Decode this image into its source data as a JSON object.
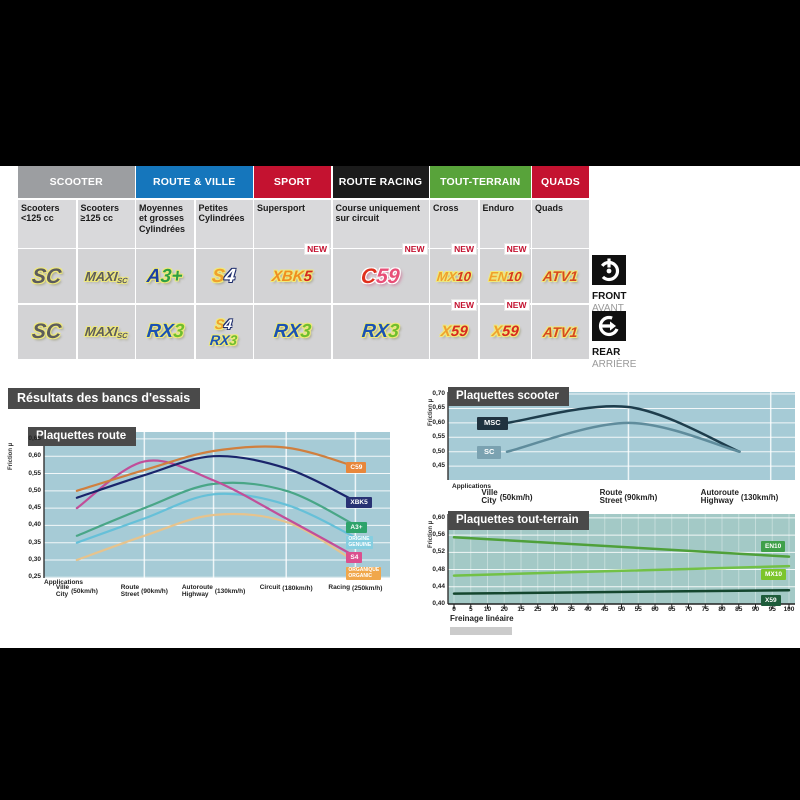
{
  "page": {
    "background": "#000000",
    "content_background": "#FFFFFF"
  },
  "results_title": "Résultats des bancs d'essais",
  "table": {
    "headers": [
      {
        "label": "SCOOTER",
        "color": "#9C9EA1",
        "span": 2
      },
      {
        "label": "ROUTE & VILLE",
        "color": "#1576BC",
        "span": 2
      },
      {
        "label": "SPORT",
        "color": "#C41230",
        "span": 1
      },
      {
        "label": "ROUTE RACING",
        "color": "#1B1B1B",
        "span": 1
      },
      {
        "label": "TOUT-TERRAIN",
        "color": "#58A33A",
        "span": 2
      },
      {
        "label": "QUADS",
        "color": "#C41230",
        "span": 1
      }
    ],
    "subheaders": [
      "Scooters <125 cc",
      "Scooters ≥125 cc",
      "Moyennes et grosses Cylindrées",
      "Petites Cylindrées",
      "Supersport",
      "Course uniquement sur circuit",
      "Cross",
      "Enduro",
      "Quads"
    ],
    "new_label": "NEW",
    "rows": [
      {
        "side": "front",
        "cells": [
          {
            "logos": [
              {
                "size": 21,
                "parts": [
                  {
                    "t": "SC",
                    "c": "#5C5C5C",
                    "fx": "glow"
                  }
                ]
              }
            ]
          },
          {
            "logos": [
              {
                "size": 13,
                "parts": [
                  {
                    "t": "MAXI",
                    "c": "#5C5C5C",
                    "fx": "glow"
                  },
                  {
                    "t": "SC",
                    "c": "#5C5C5C",
                    "fx": "glow",
                    "sub": true
                  }
                ]
              }
            ]
          },
          {
            "logos": [
              {
                "size": 19,
                "parts": [
                  {
                    "t": "A",
                    "c": "#1B3FA3",
                    "fx": "glow"
                  },
                  {
                    "t": "3+",
                    "c": "#2FA043",
                    "fx": "glow"
                  }
                ]
              }
            ]
          },
          {
            "logos": [
              {
                "size": 19,
                "parts": [
                  {
                    "t": "S",
                    "c": "#EFA12C",
                    "fx": "glow"
                  },
                  {
                    "t": "4",
                    "c": "#FFFFFF",
                    "fx": "dark"
                  }
                ]
              }
            ]
          },
          {
            "logos": [
              {
                "size": 15,
                "parts": [
                  {
                    "t": "XBK",
                    "c": "#EF8F1F",
                    "fx": "glow"
                  },
                  {
                    "t": "5",
                    "c": "#D42A1E",
                    "fx": "glow"
                  }
                ]
              }
            ],
            "new": true
          },
          {
            "logos": [
              {
                "size": 21,
                "parts": [
                  {
                    "t": "C",
                    "c": "#E0301E",
                    "fx": "pink"
                  },
                  {
                    "t": "59",
                    "c": "#E84F78",
                    "fx": "pink"
                  }
                ]
              }
            ],
            "new": true
          },
          {
            "logos": [
              {
                "size": 13,
                "parts": [
                  {
                    "t": "MX",
                    "c": "#F0A02C",
                    "fx": "glow"
                  },
                  {
                    "t": "10",
                    "c": "#D8381E",
                    "fx": "glow"
                  }
                ]
              }
            ],
            "new": true
          },
          {
            "logos": [
              {
                "size": 13,
                "parts": [
                  {
                    "t": "EN",
                    "c": "#F0A02C",
                    "fx": "glow"
                  },
                  {
                    "t": "10",
                    "c": "#D8381E",
                    "fx": "glow"
                  }
                ]
              }
            ],
            "new": true
          },
          {
            "logos": [
              {
                "size": 14,
                "parts": [
                  {
                    "t": "ATV1",
                    "c": "#D8481E",
                    "fx": "glow"
                  }
                ]
              }
            ]
          }
        ]
      },
      {
        "side": "rear",
        "cells": [
          {
            "logos": [
              {
                "size": 21,
                "parts": [
                  {
                    "t": "SC",
                    "c": "#5C5C5C",
                    "fx": "glow"
                  }
                ]
              }
            ]
          },
          {
            "logos": [
              {
                "size": 13,
                "parts": [
                  {
                    "t": "MAXI",
                    "c": "#5C5C5C",
                    "fx": "glow"
                  },
                  {
                    "t": "SC",
                    "c": "#5C5C5C",
                    "fx": "glow",
                    "sub": true
                  }
                ]
              }
            ]
          },
          {
            "logos": [
              {
                "size": 19,
                "parts": [
                  {
                    "t": "RX",
                    "c": "#1B52B4",
                    "fx": "glow"
                  },
                  {
                    "t": "3",
                    "c": "#6FBE2E",
                    "fx": "glow"
                  }
                ]
              }
            ]
          },
          {
            "logos": [
              {
                "size": 14,
                "parts": [
                  {
                    "t": "S",
                    "c": "#EFA12C",
                    "fx": "glow"
                  },
                  {
                    "t": "4",
                    "c": "#FFFFFF",
                    "fx": "dark"
                  }
                ]
              },
              {
                "size": 14,
                "parts": [
                  {
                    "t": "RX",
                    "c": "#1B52B4",
                    "fx": "glow"
                  },
                  {
                    "t": "3",
                    "c": "#6FBE2E",
                    "fx": "glow"
                  }
                ]
              }
            ]
          },
          {
            "logos": [
              {
                "size": 19,
                "parts": [
                  {
                    "t": "RX",
                    "c": "#1B52B4",
                    "fx": "glow"
                  },
                  {
                    "t": "3",
                    "c": "#6FBE2E",
                    "fx": "glow"
                  }
                ]
              }
            ]
          },
          {
            "logos": [
              {
                "size": 19,
                "parts": [
                  {
                    "t": "RX",
                    "c": "#1B52B4",
                    "fx": "glow"
                  },
                  {
                    "t": "3",
                    "c": "#6FBE2E",
                    "fx": "glow"
                  }
                ]
              }
            ]
          },
          {
            "logos": [
              {
                "size": 15,
                "parts": [
                  {
                    "t": "X",
                    "c": "#F0A02C",
                    "fx": "glow"
                  },
                  {
                    "t": "59",
                    "c": "#D8281E",
                    "fx": "glow"
                  }
                ]
              }
            ],
            "new": true
          },
          {
            "logos": [
              {
                "size": 15,
                "parts": [
                  {
                    "t": "X",
                    "c": "#F0A02C",
                    "fx": "glow"
                  },
                  {
                    "t": "59",
                    "c": "#D8281E",
                    "fx": "glow"
                  }
                ]
              }
            ],
            "new": true
          },
          {
            "logos": [
              {
                "size": 14,
                "parts": [
                  {
                    "t": "ATV1",
                    "c": "#D8481E",
                    "fx": "glow"
                  }
                ]
              }
            ]
          }
        ]
      }
    ],
    "side_labels": {
      "front": {
        "label": "FRONT",
        "sub": "AVANT"
      },
      "rear": {
        "label": "REAR",
        "sub": "ARRIÈRE"
      }
    }
  },
  "chart_data": [
    {
      "type": "line",
      "title": "Plaquettes route",
      "ylabel": "Friction µ",
      "xlabel_caption": "Applications",
      "ylim": [
        0.25,
        0.65
      ],
      "yticks": [
        0.65,
        0.6,
        0.55,
        0.5,
        0.45,
        0.4,
        0.35,
        0.3,
        0.25
      ],
      "grid": true,
      "legend_position": "right-of-lines",
      "categories": [
        {
          "line1": "Ville",
          "line2": "City",
          "speed": "(50km/h)"
        },
        {
          "line1": "Route",
          "line2": "Street",
          "speed": "(90km/h)"
        },
        {
          "line1": "Autoroute",
          "line2": "Highway",
          "speed": "(130km/h)"
        },
        {
          "line1": "Circuit",
          "speed": "(180km/h)"
        },
        {
          "line1": "Racing",
          "speed": "(250km/h)"
        }
      ],
      "series": [
        {
          "name": "ORGANIQUE|ORGANIC",
          "color": "#E6C38D",
          "label_bg": "#F0A74B",
          "values": [
            0.3,
            0.37,
            0.43,
            0.41,
            0.295
          ],
          "label_value": 0.262
        },
        {
          "name": "ORIGINE|GENUINE",
          "color": "#66C0D8",
          "label_bg": "#85CEE0",
          "values": [
            0.35,
            0.42,
            0.49,
            0.46,
            0.365
          ],
          "label_value": 0.352
        },
        {
          "name": "A3+",
          "color": "#49A687",
          "label_bg": "#2EA36B",
          "values": [
            0.37,
            0.45,
            0.52,
            0.5,
            0.4
          ],
          "label_value": 0.392
        },
        {
          "name": "S4",
          "color": "#C14E99",
          "label_bg": "#DB4F8E",
          "values": [
            0.45,
            0.585,
            0.53,
            0.42,
            0.31
          ],
          "label_value": 0.306
        },
        {
          "name": "XBK5",
          "color": "#1A246B",
          "label_bg": "#283173",
          "values": [
            0.48,
            0.545,
            0.6,
            0.565,
            0.47
          ],
          "label_value": 0.465
        },
        {
          "name": "C59",
          "color": "#D07F3E",
          "label_bg": "#E8873B",
          "values": [
            0.5,
            0.56,
            0.615,
            0.625,
            0.57
          ],
          "label_value": 0.567
        }
      ]
    },
    {
      "type": "line",
      "title": "Plaquettes scooter",
      "ylabel": "Friction µ",
      "xlabel_caption": "Applications",
      "ylim": [
        0.45,
        0.7
      ],
      "yticks": [
        0.7,
        0.65,
        0.6,
        0.55,
        0.5,
        0.45
      ],
      "grid": true,
      "legend_position": "left-of-lines",
      "categories": [
        {
          "line1": "Ville",
          "line2": "City",
          "speed": "(50km/h)"
        },
        {
          "line1": "Route",
          "line2": "Street",
          "speed": "(90km/h)"
        },
        {
          "line1": "Autoroute",
          "line2": "Highway",
          "speed": "(130km/h)"
        }
      ],
      "series": [
        {
          "name": "MSC",
          "color": "#1E3D4C",
          "label_bg": "#20323F",
          "values": [
            0.6,
            0.655,
            0.5
          ],
          "label_value": 0.6
        },
        {
          "name": "SC",
          "color": "#5F8C9C",
          "label_bg": "#7BA2B1",
          "values": [
            0.5,
            0.6,
            0.5
          ],
          "label_value": 0.5
        }
      ]
    },
    {
      "type": "line",
      "title": "Plaquettes tout-terrain",
      "ylabel": "Friction µ",
      "xlabel": "Freinage linéaire",
      "ylim": [
        0.4,
        0.6
      ],
      "yticks": [
        0.6,
        0.56,
        0.52,
        0.48,
        0.44,
        0.4
      ],
      "grid": true,
      "legend_position": "inside-right",
      "xticklabels": [
        "0",
        "5",
        "10",
        "20",
        "15",
        "25",
        "30",
        "35",
        "40",
        "45",
        "50",
        "55",
        "60",
        "65",
        "70",
        "75",
        "80",
        "85",
        "90",
        "95",
        "100"
      ],
      "series": [
        {
          "name": "EN10",
          "color": "#4FA03A",
          "label_bg": "#3FA04A",
          "x": [
            0,
            100
          ],
          "values": [
            0.555,
            0.51
          ],
          "label_value": 0.532
        },
        {
          "name": "MX10",
          "color": "#72C146",
          "label_bg": "#7CC52B",
          "x": [
            0,
            100
          ],
          "values": [
            0.466,
            0.488
          ],
          "label_value": 0.468
        },
        {
          "name": "X59",
          "color": "#14462E",
          "label_bg": "#1E5C3B",
          "x": [
            0,
            100
          ],
          "values": [
            0.424,
            0.432
          ],
          "label_value": 0.408
        }
      ]
    }
  ]
}
